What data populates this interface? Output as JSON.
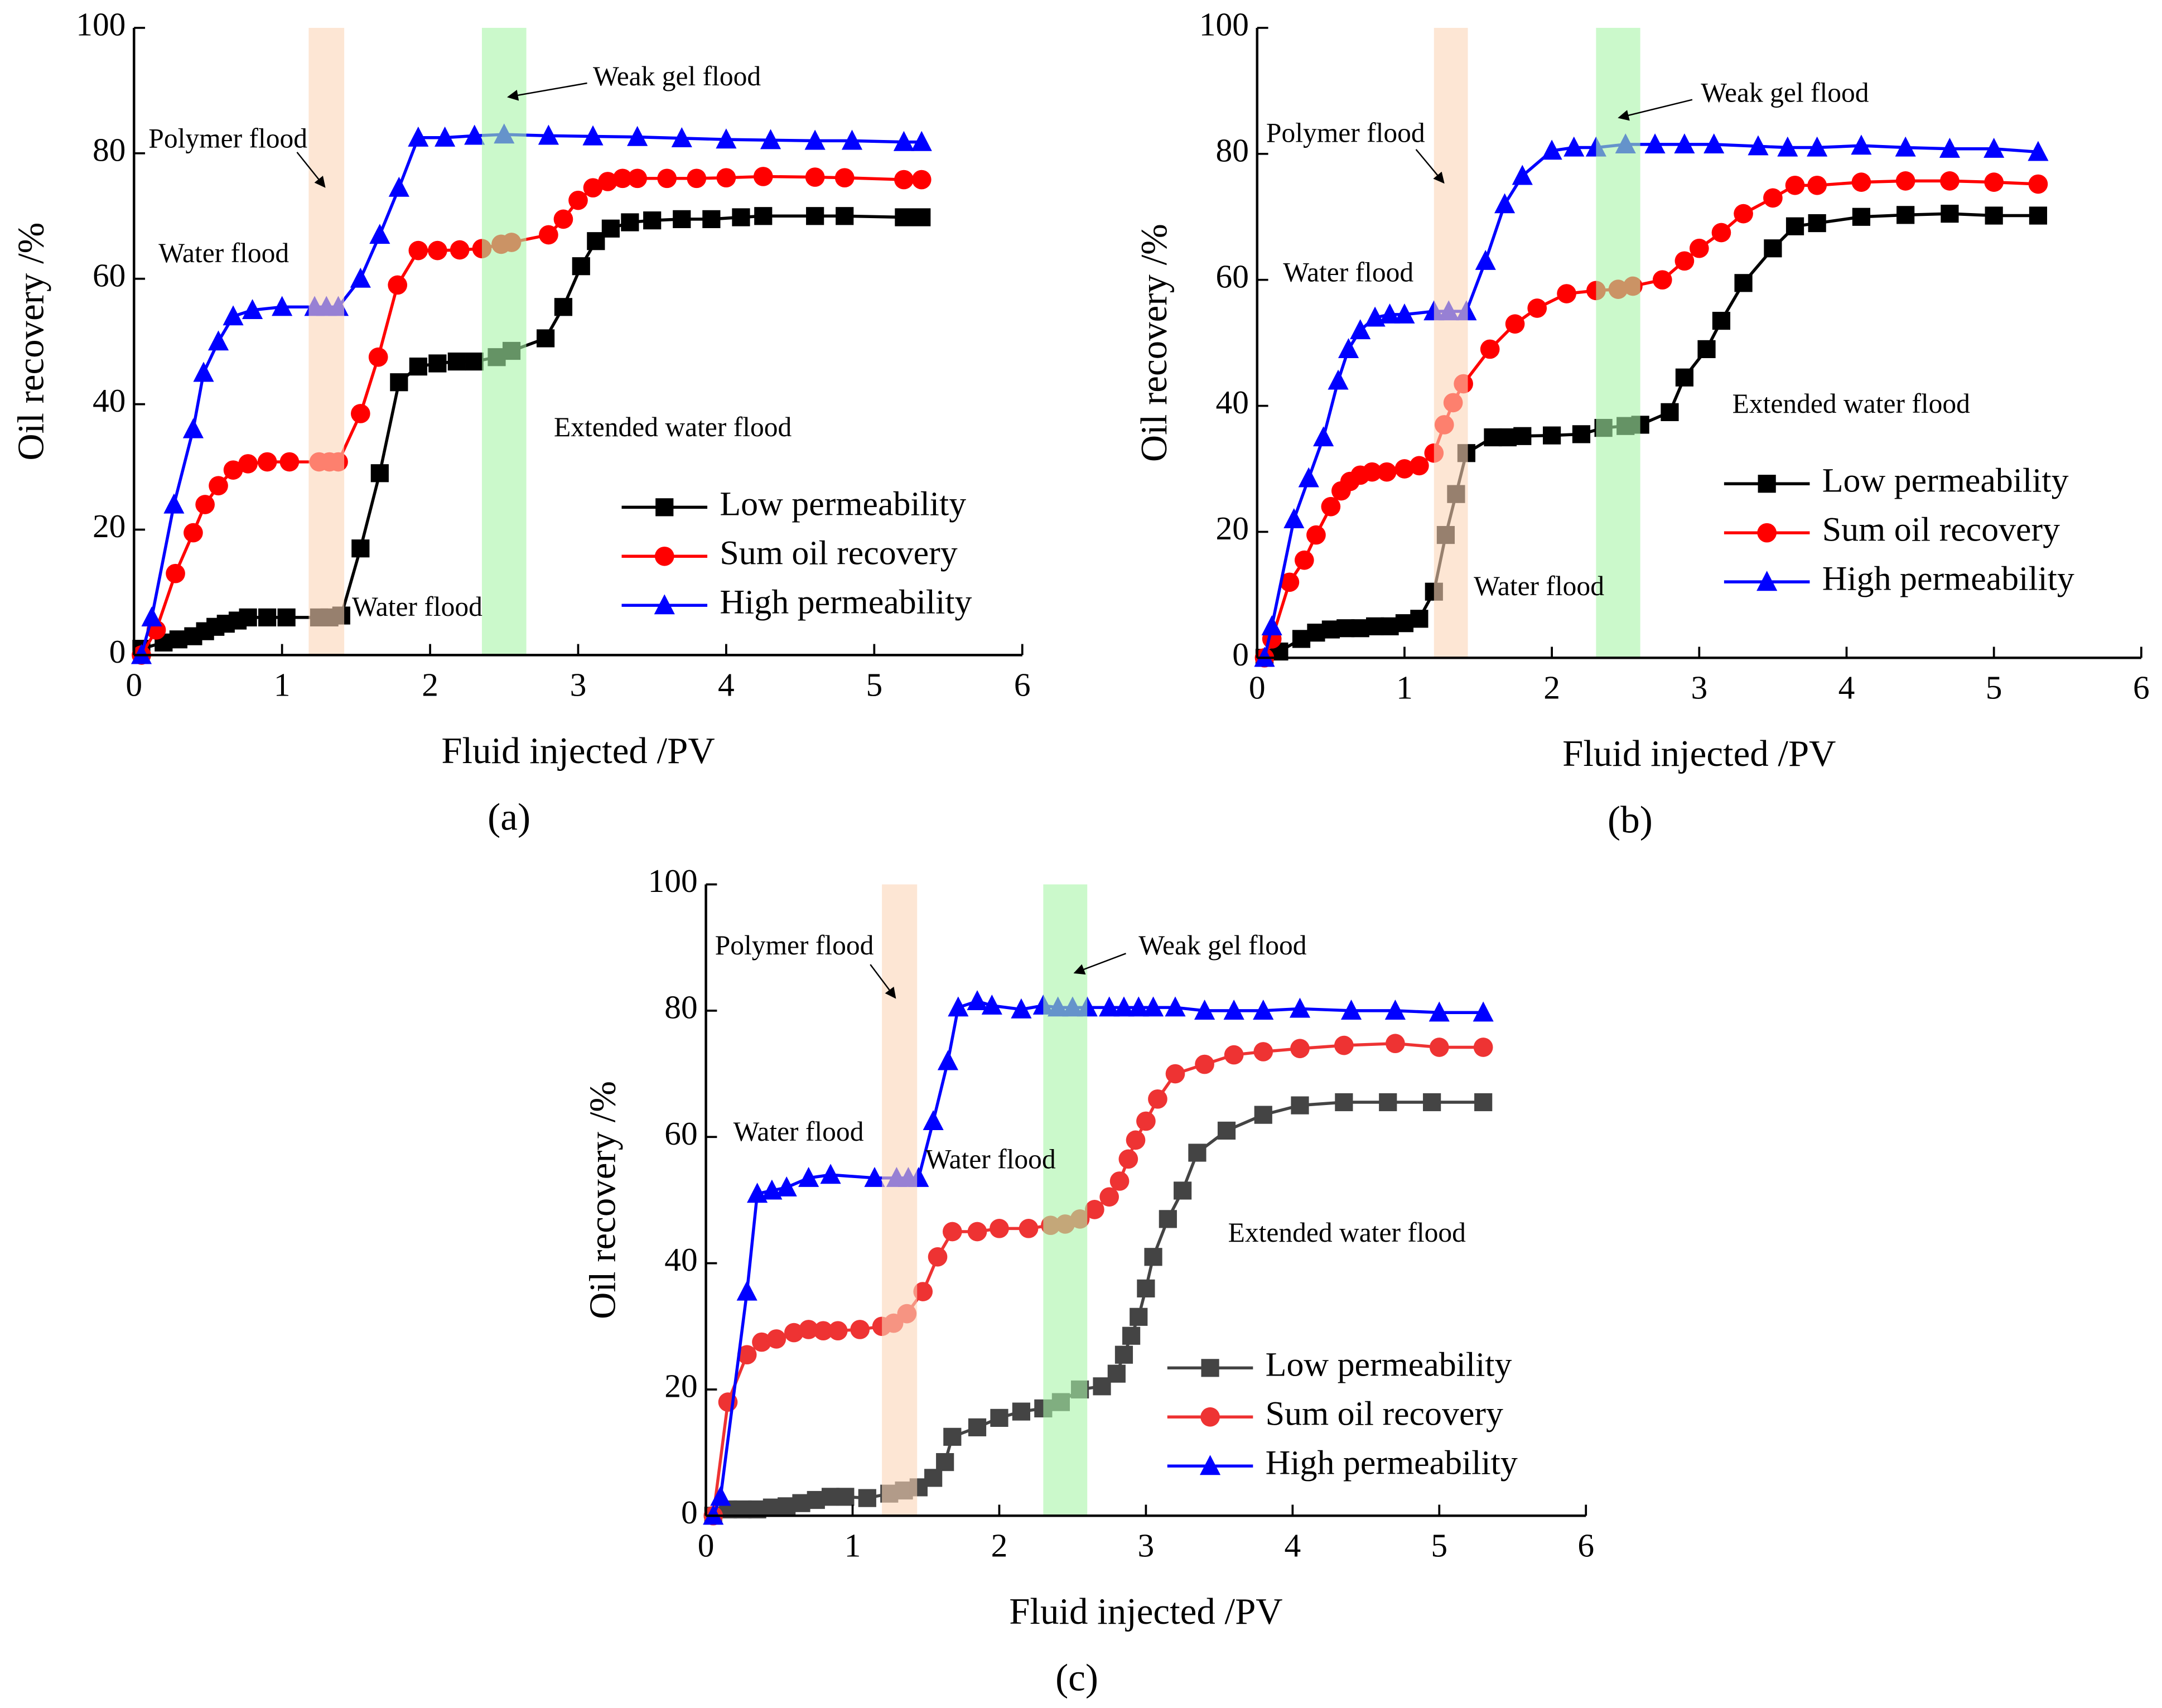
{
  "chart_data": [
    {
      "type": "line",
      "label": "(a)",
      "xlabel": "Fluid injected /PV",
      "ylabel": "Oil recovery /%",
      "xlim": [
        0,
        6
      ],
      "xticks": [
        0,
        1,
        2,
        3,
        4,
        5,
        6
      ],
      "ylim": [
        0,
        100
      ],
      "yticks": [
        0,
        20,
        40,
        60,
        80,
        100
      ],
      "legend": "lower right",
      "annotations": [
        "Polymer flood",
        "Weak gel flood",
        "Water flood",
        "Water flood",
        "Extended water flood"
      ],
      "bands": [
        {
          "x": [
            1.18,
            1.42
          ],
          "color": "#fbd5b8"
        },
        {
          "x": [
            2.35,
            2.65
          ],
          "color": "#a8f5a8"
        }
      ],
      "series": [
        {
          "name": "Low permeability",
          "color": "#000000",
          "marker": "square",
          "x": [
            0.05,
            0.2,
            0.3,
            0.4,
            0.48,
            0.55,
            0.62,
            0.7,
            0.77,
            0.9,
            1.03,
            1.25,
            1.32,
            1.4,
            1.53,
            1.66,
            1.79,
            1.92,
            2.05,
            2.18,
            2.3,
            2.45,
            2.55,
            2.78,
            2.9,
            3.02,
            3.12,
            3.22,
            3.35,
            3.5,
            3.7,
            3.9,
            4.1,
            4.25,
            4.6,
            4.8,
            5.2,
            5.32
          ],
          "values": [
            1,
            2,
            2.5,
            3,
            3.8,
            4.5,
            5,
            5.5,
            6,
            6,
            6,
            6,
            6,
            6.3,
            17,
            29,
            43.5,
            46,
            46.5,
            46.8,
            46.8,
            47.5,
            48.5,
            50.5,
            55.5,
            62,
            66,
            68,
            69,
            69.3,
            69.5,
            69.5,
            69.8,
            70,
            70,
            70,
            69.8,
            69.8
          ]
        },
        {
          "name": "Sum oil recovery",
          "color": "#ff0000",
          "marker": "circle",
          "x": [
            0.05,
            0.15,
            0.28,
            0.4,
            0.48,
            0.57,
            0.67,
            0.77,
            0.9,
            1.05,
            1.25,
            1.32,
            1.38,
            1.53,
            1.65,
            1.78,
            1.92,
            2.05,
            2.2,
            2.35,
            2.48,
            2.55,
            2.8,
            2.9,
            3.0,
            3.1,
            3.2,
            3.3,
            3.4,
            3.6,
            3.8,
            4.0,
            4.25,
            4.6,
            4.8,
            5.2,
            5.32
          ],
          "values": [
            0,
            4,
            13,
            19.5,
            24,
            27,
            29.5,
            30.5,
            30.8,
            30.8,
            30.8,
            30.8,
            30.8,
            38.5,
            47.5,
            59,
            64.5,
            64.5,
            64.6,
            64.8,
            65.5,
            65.8,
            67,
            69.5,
            72.5,
            74.5,
            75.5,
            76,
            76,
            76,
            76,
            76.1,
            76.3,
            76.2,
            76.1,
            75.8,
            75.8
          ]
        },
        {
          "name": "High permeability",
          "color": "#0000ff",
          "marker": "triangle",
          "x": [
            0.05,
            0.12,
            0.27,
            0.4,
            0.47,
            0.57,
            0.67,
            0.8,
            1.0,
            1.22,
            1.3,
            1.38,
            1.53,
            1.66,
            1.79,
            1.92,
            2.1,
            2.3,
            2.5,
            2.8,
            3.1,
            3.4,
            3.7,
            4.0,
            4.3,
            4.6,
            4.85,
            5.2,
            5.32
          ],
          "values": [
            0,
            6,
            24,
            36,
            45,
            50,
            54,
            55,
            55.5,
            55.5,
            55.5,
            55.5,
            60,
            67,
            74.5,
            82.5,
            82.5,
            82.8,
            83,
            82.8,
            82.7,
            82.6,
            82.4,
            82.2,
            82.1,
            82,
            82,
            81.8,
            81.8
          ]
        }
      ]
    },
    {
      "type": "line",
      "label": "(b)",
      "xlabel": "Fluid injected /PV",
      "ylabel": "Oil recovery /%",
      "xlim": [
        0,
        6
      ],
      "xticks": [
        0,
        1,
        2,
        3,
        4,
        5,
        6
      ],
      "ylim": [
        0,
        100
      ],
      "yticks": [
        0,
        20,
        40,
        60,
        80,
        100
      ],
      "legend": "lower right",
      "annotations": [
        "Polymer flood",
        "Weak gel flood",
        "Water flood",
        "Water flood",
        "Extended water flood"
      ],
      "bands": [
        {
          "x": [
            1.2,
            1.43
          ],
          "color": "#fbd5b8"
        },
        {
          "x": [
            2.3,
            2.6
          ],
          "color": "#a8f5a8"
        }
      ],
      "series": [
        {
          "name": "Low permeability",
          "color": "#000000",
          "marker": "square",
          "x": [
            0.05,
            0.15,
            0.3,
            0.4,
            0.5,
            0.6,
            0.7,
            0.8,
            0.9,
            1.0,
            1.1,
            1.2,
            1.28,
            1.35,
            1.42,
            1.6,
            1.7,
            1.8,
            2.0,
            2.2,
            2.35,
            2.5,
            2.6,
            2.8,
            2.9,
            3.05,
            3.15,
            3.3,
            3.5,
            3.65,
            3.8,
            4.1,
            4.4,
            4.7,
            5.0,
            5.3
          ],
          "values": [
            0,
            1,
            3,
            4,
            4.5,
            4.7,
            4.7,
            5,
            5,
            5.5,
            6.2,
            10.5,
            19.5,
            26,
            32.5,
            35,
            35,
            35.2,
            35.3,
            35.5,
            36.5,
            36.8,
            37,
            39,
            44.5,
            49,
            53.5,
            59.5,
            65,
            68.5,
            69,
            70,
            70.3,
            70.5,
            70.2,
            70.2
          ]
        },
        {
          "name": "Sum oil recovery",
          "color": "#ff0000",
          "marker": "circle",
          "x": [
            0.05,
            0.1,
            0.22,
            0.32,
            0.4,
            0.5,
            0.57,
            0.63,
            0.7,
            0.78,
            0.88,
            1.0,
            1.1,
            1.2,
            1.27,
            1.33,
            1.4,
            1.58,
            1.75,
            1.9,
            2.1,
            2.3,
            2.45,
            2.55,
            2.75,
            2.9,
            3.0,
            3.15,
            3.3,
            3.5,
            3.65,
            3.8,
            4.1,
            4.4,
            4.7,
            5.0,
            5.3
          ],
          "values": [
            0,
            3,
            12,
            15.5,
            19.5,
            24,
            26.5,
            28,
            29,
            29.5,
            29.5,
            30,
            30.5,
            32.5,
            37,
            40.5,
            43.5,
            49,
            53,
            55.5,
            57.8,
            58.3,
            58.5,
            59,
            60,
            63,
            65,
            67.5,
            70.5,
            73,
            75,
            75,
            75.5,
            75.7,
            75.7,
            75.5,
            75.2
          ]
        },
        {
          "name": "High permeability",
          "color": "#0000ff",
          "marker": "triangle",
          "x": [
            0.05,
            0.1,
            0.25,
            0.35,
            0.45,
            0.55,
            0.62,
            0.7,
            0.8,
            0.9,
            1.0,
            1.2,
            1.3,
            1.42,
            1.55,
            1.68,
            1.8,
            2.0,
            2.15,
            2.3,
            2.5,
            2.7,
            2.9,
            3.1,
            3.4,
            3.6,
            3.8,
            4.1,
            4.4,
            4.7,
            5.0,
            5.3
          ],
          "values": [
            0,
            5,
            22,
            28.5,
            35,
            44,
            49,
            52,
            54,
            54.5,
            54.5,
            55,
            55,
            55,
            63,
            72,
            76.5,
            80.5,
            81,
            81,
            81.5,
            81.5,
            81.5,
            81.5,
            81.2,
            81,
            81,
            81.3,
            81,
            80.8,
            80.8,
            80.3
          ]
        }
      ]
    },
    {
      "type": "line",
      "label": "(c)",
      "xlabel": "Fluid injected /PV",
      "ylabel": "Oil recovery /%",
      "xlim": [
        0,
        6
      ],
      "xticks": [
        0,
        1,
        2,
        3,
        4,
        5,
        6
      ],
      "ylim": [
        0,
        100
      ],
      "yticks": [
        0,
        20,
        40,
        60,
        80,
        100
      ],
      "legend": "lower right",
      "annotations": [
        "Polymer flood",
        "Weak gel flood",
        "Water flood",
        "Water flood",
        "Extended water flood"
      ],
      "bands": [
        {
          "x": [
            1.2,
            1.44
          ],
          "color": "#fbd5b8"
        },
        {
          "x": [
            2.3,
            2.6
          ],
          "color": "#a8f5a8"
        }
      ],
      "series": [
        {
          "name": "Low permeability",
          "color": "#444444",
          "marker": "square",
          "x": [
            0.05,
            0.15,
            0.25,
            0.35,
            0.45,
            0.55,
            0.65,
            0.75,
            0.85,
            0.95,
            1.1,
            1.25,
            1.35,
            1.45,
            1.55,
            1.63,
            1.68,
            1.85,
            2.0,
            2.15,
            2.3,
            2.42,
            2.55,
            2.7,
            2.8,
            2.85,
            2.9,
            2.95,
            3.0,
            3.05,
            3.15,
            3.25,
            3.35,
            3.55,
            3.8,
            4.05,
            4.35,
            4.65,
            4.95,
            5.3
          ],
          "values": [
            0,
            1,
            1,
            1,
            1.3,
            1.5,
            2,
            2.5,
            3,
            3,
            2.8,
            3.5,
            4,
            4.5,
            6,
            8.5,
            12.5,
            14,
            15.5,
            16.5,
            17,
            18,
            20,
            20.5,
            22.5,
            25.5,
            28.5,
            31.5,
            36,
            41,
            47,
            51.5,
            57.5,
            61,
            63.5,
            65,
            65.5,
            65.5,
            65.5,
            65.5
          ]
        },
        {
          "name": "Sum oil recovery",
          "color": "#ee3333",
          "marker": "circle",
          "x": [
            0.05,
            0.15,
            0.28,
            0.38,
            0.48,
            0.6,
            0.7,
            0.8,
            0.9,
            1.05,
            1.2,
            1.28,
            1.37,
            1.48,
            1.58,
            1.68,
            1.85,
            2.0,
            2.2,
            2.35,
            2.45,
            2.55,
            2.65,
            2.75,
            2.82,
            2.88,
            2.93,
            3.0,
            3.08,
            3.2,
            3.4,
            3.6,
            3.8,
            4.05,
            4.35,
            4.7,
            5.0,
            5.3
          ],
          "values": [
            0,
            18,
            25.5,
            27.5,
            28,
            29,
            29.5,
            29.3,
            29.3,
            29.5,
            30,
            30.5,
            32,
            35.5,
            41,
            45,
            45,
            45.5,
            45.5,
            46,
            46.2,
            47,
            48.5,
            50.5,
            53,
            56.5,
            59.5,
            62.5,
            66,
            70,
            71.5,
            73,
            73.5,
            74,
            74.5,
            74.8,
            74.2,
            74.2
          ]
        },
        {
          "name": "High permeability",
          "color": "#0000ff",
          "marker": "triangle",
          "x": [
            0.05,
            0.1,
            0.28,
            0.35,
            0.45,
            0.55,
            0.7,
            0.85,
            1.15,
            1.3,
            1.38,
            1.45,
            1.55,
            1.65,
            1.72,
            1.85,
            1.95,
            2.15,
            2.3,
            2.4,
            2.5,
            2.6,
            2.75,
            2.85,
            2.95,
            3.05,
            3.2,
            3.4,
            3.6,
            3.8,
            4.05,
            4.4,
            4.7,
            5.0,
            5.3
          ],
          "values": [
            0,
            3,
            35.5,
            51,
            51.5,
            52,
            53.5,
            54,
            53.5,
            53.5,
            53.5,
            53.5,
            62.5,
            72,
            80.5,
            81.5,
            80.8,
            80.2,
            80.8,
            80.5,
            80.5,
            80.5,
            80.5,
            80.5,
            80.5,
            80.5,
            80.5,
            80,
            80,
            80,
            80.3,
            80,
            80,
            79.7,
            79.7
          ]
        }
      ]
    }
  ]
}
